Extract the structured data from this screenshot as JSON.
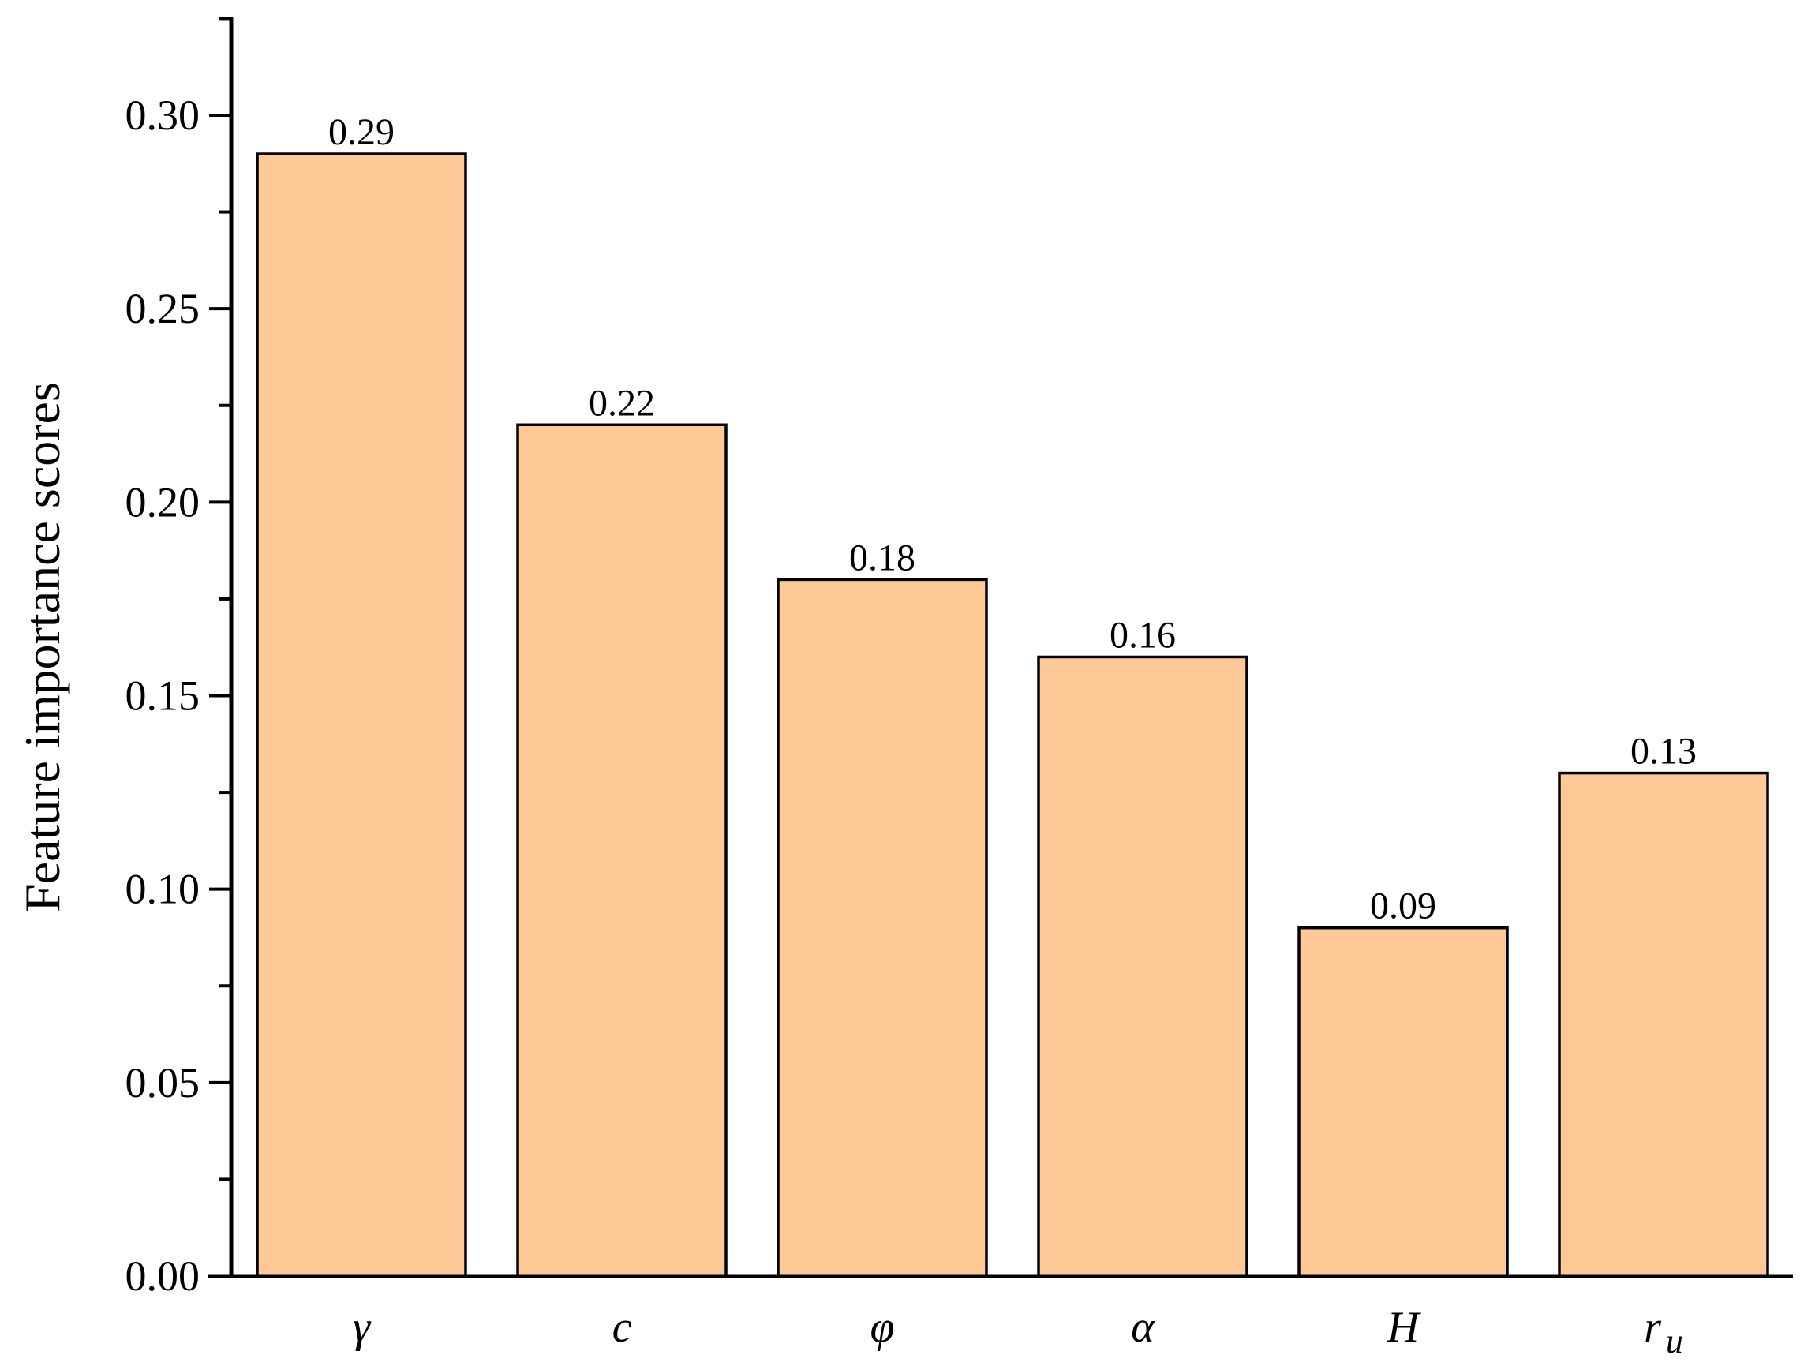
{
  "chart_data": {
    "type": "bar",
    "categories": [
      "γ",
      "c",
      "φ",
      "α",
      "H",
      "r"
    ],
    "category_subscripts": [
      "",
      "",
      "",
      "",
      "",
      "u"
    ],
    "values": [
      0.29,
      0.22,
      0.18,
      0.16,
      0.09,
      0.13
    ],
    "data_labels": [
      "0.29",
      "0.22",
      "0.18",
      "0.16",
      "0.09",
      "0.13"
    ],
    "ylabel": "Feature importance scores",
    "xlabel": "",
    "ylim": [
      0,
      0.325
    ],
    "yticks": [
      "0.00",
      "0.05",
      "0.10",
      "0.15",
      "0.20",
      "0.25",
      "0.30"
    ],
    "ytick_values": [
      0,
      0.05,
      0.1,
      0.15,
      0.2,
      0.25,
      0.3
    ],
    "grid": false,
    "bar_color": "#FFC897",
    "edge_color": "#000000"
  }
}
